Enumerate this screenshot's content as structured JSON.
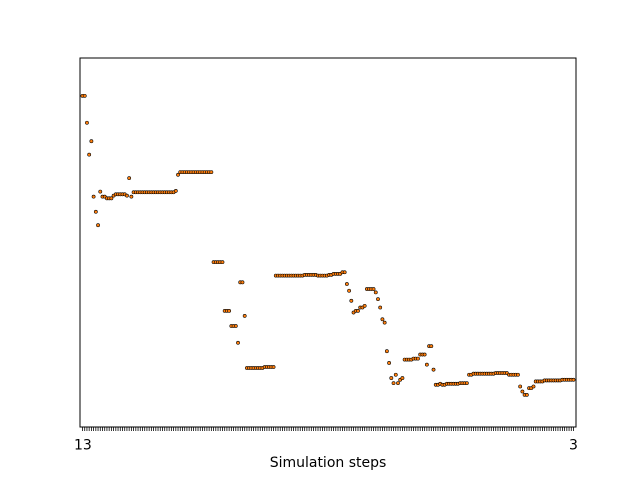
{
  "chart_data": {
    "type": "scatter",
    "title": "",
    "xlabel": "Simulation steps",
    "ylabel": "",
    "x_tick_labels_first": "1",
    "x_tick_labels_last": "3",
    "x_tick_overlap_text": "13",
    "y_ticks_visible": false,
    "grid": false,
    "legend": "none",
    "marker_color": "#ff7f0e",
    "marker_edge": "#000000",
    "ylim": [
      0,
      100
    ],
    "y": [
      93.5,
      93.5,
      85.5,
      76.0,
      80.0,
      63.5,
      59.0,
      55.0,
      65.0,
      63.5,
      63.5,
      63.0,
      63.0,
      63.0,
      63.8,
      64.2,
      64.2,
      64.2,
      64.2,
      64.2,
      63.8,
      69.0,
      63.5,
      64.8,
      64.8,
      64.8,
      64.8,
      64.8,
      64.8,
      64.8,
      64.8,
      64.8,
      64.8,
      64.8,
      64.8,
      64.8,
      64.8,
      64.8,
      64.8,
      64.8,
      64.8,
      64.8,
      65.2,
      70.0,
      70.8,
      70.8,
      70.8,
      70.8,
      70.8,
      70.8,
      70.8,
      70.8,
      70.8,
      70.8,
      70.8,
      70.8,
      70.8,
      70.8,
      70.8,
      44.0,
      44.0,
      44.0,
      44.0,
      44.0,
      29.5,
      29.5,
      29.5,
      25.0,
      25.0,
      25.0,
      20.0,
      38.0,
      38.0,
      28.0,
      12.5,
      12.5,
      12.5,
      12.5,
      12.5,
      12.5,
      12.5,
      12.5,
      12.8,
      12.8,
      12.8,
      12.8,
      12.8,
      40.0,
      40.0,
      40.0,
      40.0,
      40.0,
      40.0,
      40.0,
      40.0,
      40.0,
      40.0,
      40.0,
      40.0,
      40.0,
      40.2,
      40.2,
      40.2,
      40.2,
      40.2,
      40.2,
      40.0,
      40.0,
      40.0,
      40.0,
      40.0,
      40.2,
      40.2,
      40.5,
      40.5,
      40.5,
      40.5,
      41.0,
      41.0,
      37.5,
      35.5,
      32.5,
      29.0,
      29.5,
      29.5,
      30.5,
      30.5,
      31.0,
      36.0,
      36.0,
      36.0,
      36.0,
      35.0,
      33.0,
      30.5,
      27.0,
      26.0,
      17.5,
      14.0,
      9.5,
      8.0,
      10.5,
      8.0,
      9.0,
      9.5,
      15.0,
      15.0,
      15.0,
      15.0,
      15.3,
      15.3,
      15.3,
      16.5,
      16.5,
      16.5,
      13.5,
      19.0,
      19.0,
      12.0,
      7.5,
      7.5,
      7.8,
      7.5,
      7.5,
      7.8,
      7.8,
      7.8,
      7.8,
      7.8,
      7.8,
      8.0,
      8.0,
      8.0,
      8.0,
      10.5,
      10.5,
      10.8,
      10.8,
      10.8,
      10.8,
      10.8,
      10.8,
      10.8,
      10.8,
      10.8,
      10.8,
      11.0,
      11.0,
      11.0,
      11.0,
      11.0,
      11.0,
      10.5,
      10.5,
      10.5,
      10.5,
      10.5,
      7.0,
      5.5,
      4.5,
      4.5,
      6.5,
      6.5,
      7.0,
      8.5,
      8.5,
      8.5,
      8.5,
      8.8,
      8.8,
      8.8,
      8.8,
      8.8,
      8.8,
      8.8,
      8.8,
      9.0,
      9.0,
      9.0,
      9.0,
      9.0,
      9.0
    ]
  }
}
